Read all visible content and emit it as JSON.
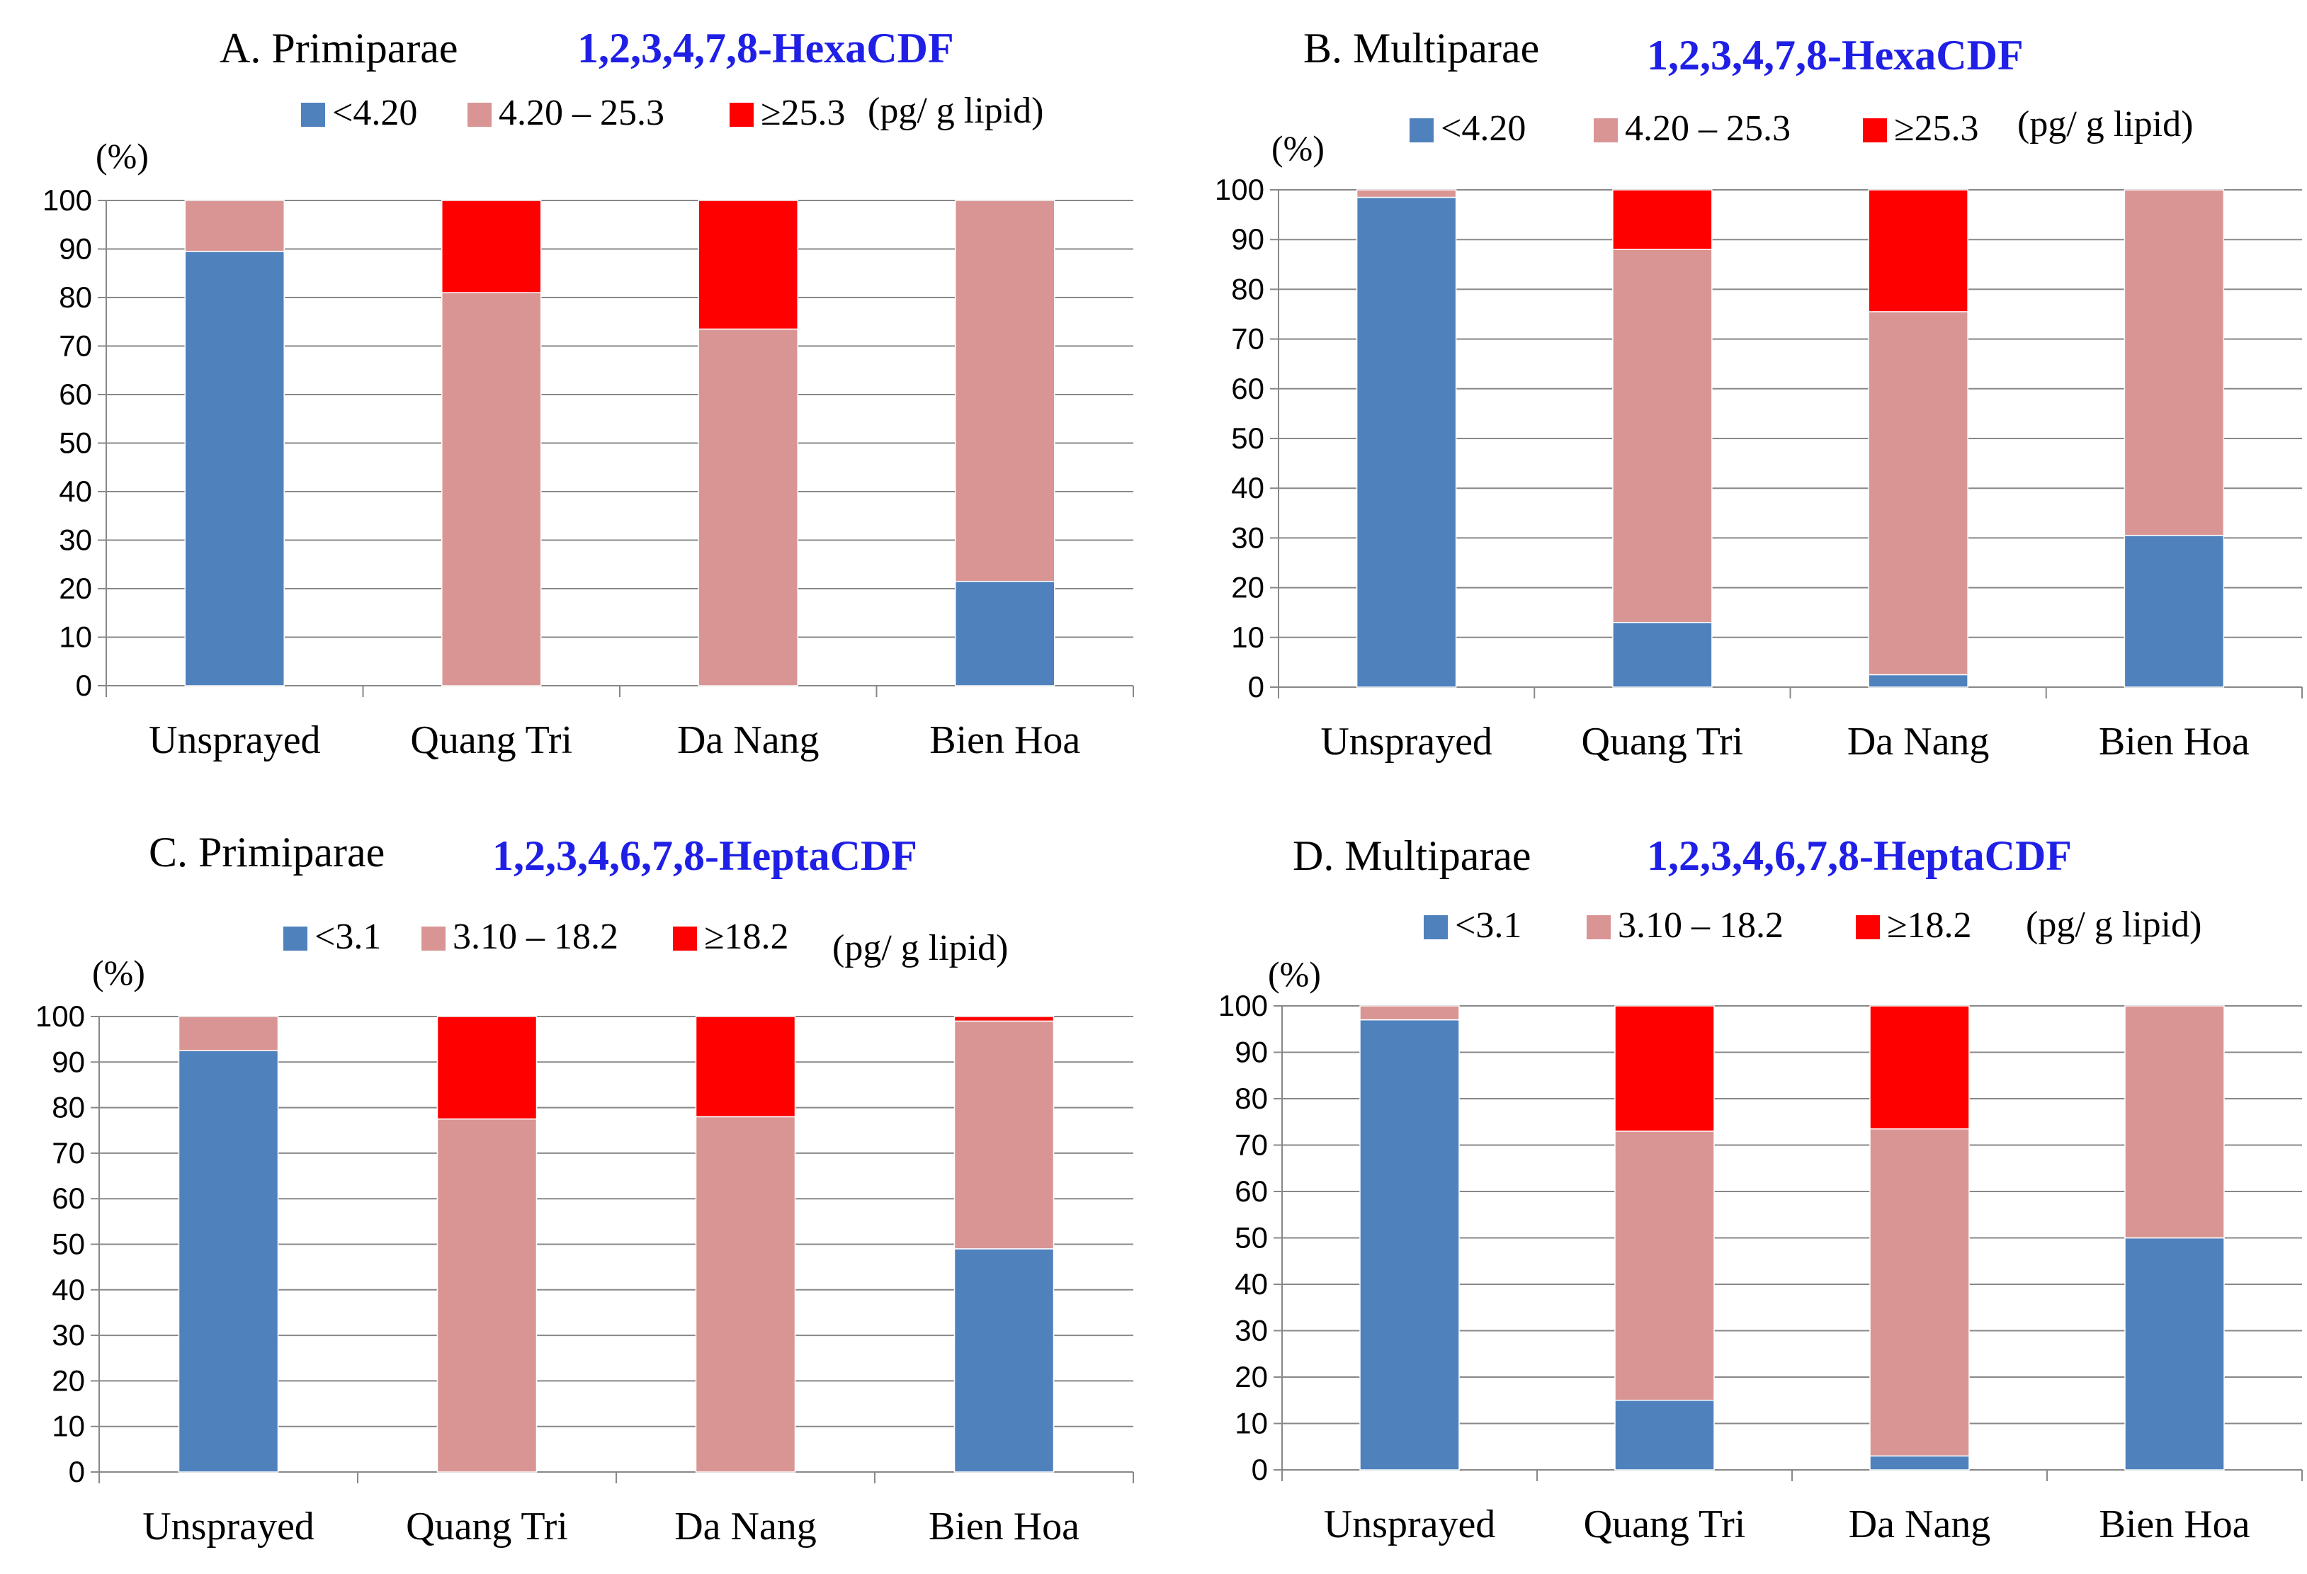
{
  "chart_data": [
    {
      "type": "bar",
      "stacked": true,
      "title": "A. Primiparae",
      "compound": "1,2,3,4,7,8-HexaCDF",
      "ylabel": "(%)",
      "unit": "(pg/ g lipid)",
      "ylim": [
        0,
        100
      ],
      "yticks": [
        "0",
        "10",
        "20",
        "30",
        "40",
        "50",
        "60",
        "70",
        "80",
        "90",
        "100"
      ],
      "categories": [
        "Unsprayed",
        "Quang Tri",
        "Da Nang",
        "Bien Hoa"
      ],
      "series": [
        {
          "name": "<4.20",
          "color": "#4f81bd",
          "values": [
            89.5,
            0,
            0,
            21.5
          ]
        },
        {
          "name": "4.20 – 25.3",
          "color": "#d99594",
          "values": [
            10.5,
            81,
            73.5,
            78.5
          ]
        },
        {
          "name": "≥25.3",
          "color": "#ff0000",
          "values": [
            0,
            19,
            26.5,
            0
          ]
        }
      ]
    },
    {
      "type": "bar",
      "stacked": true,
      "title": "B. Multiparae",
      "compound": "1,2,3,4,7,8-HexaCDF",
      "ylabel": "(%)",
      "unit": "(pg/ g lipid)",
      "ylim": [
        0,
        100
      ],
      "yticks": [
        "0",
        "10",
        "20",
        "30",
        "40",
        "50",
        "60",
        "70",
        "80",
        "90",
        "100"
      ],
      "categories": [
        "Unsprayed",
        "Quang Tri",
        "Da Nang",
        "Bien Hoa"
      ],
      "series": [
        {
          "name": "<4.20",
          "color": "#4f81bd",
          "values": [
            98.5,
            13,
            2.5,
            30.5
          ]
        },
        {
          "name": "4.20 – 25.3",
          "color": "#d99594",
          "values": [
            1.5,
            75,
            73,
            69.5
          ]
        },
        {
          "name": "≥25.3",
          "color": "#ff0000",
          "values": [
            0,
            12,
            24.5,
            0
          ]
        }
      ]
    },
    {
      "type": "bar",
      "stacked": true,
      "title": "C. Primiparae",
      "compound": "1,2,3,4,6,7,8-HeptaCDF",
      "ylabel": "(%)",
      "unit": "(pg/ g lipid)",
      "ylim": [
        0,
        100
      ],
      "yticks": [
        "0",
        "10",
        "20",
        "30",
        "40",
        "50",
        "60",
        "70",
        "80",
        "90",
        "100"
      ],
      "categories": [
        "Unsprayed",
        "Quang Tri",
        "Da Nang",
        "Bien Hoa"
      ],
      "series": [
        {
          "name": "<3.1",
          "color": "#4f81bd",
          "values": [
            92.5,
            0,
            0,
            49
          ]
        },
        {
          "name": "3.10 – 18.2",
          "color": "#d99594",
          "values": [
            7.5,
            77.5,
            78,
            50
          ]
        },
        {
          "name": "≥18.2",
          "color": "#ff0000",
          "values": [
            0,
            22.5,
            22,
            1
          ]
        }
      ]
    },
    {
      "type": "bar",
      "stacked": true,
      "title": "D. Multiparae",
      "compound": "1,2,3,4,6,7,8-HeptaCDF",
      "ylabel": "(%)",
      "unit": "(pg/ g lipid)",
      "ylim": [
        0,
        100
      ],
      "yticks": [
        "0",
        "10",
        "20",
        "30",
        "40",
        "50",
        "60",
        "70",
        "80",
        "90",
        "100"
      ],
      "categories": [
        "Unsprayed",
        "Quang Tri",
        "Da Nang",
        "Bien Hoa"
      ],
      "series": [
        {
          "name": "<3.1",
          "color": "#4f81bd",
          "values": [
            97,
            15,
            3,
            50
          ]
        },
        {
          "name": "3.10 – 18.2",
          "color": "#d99594",
          "values": [
            3,
            58,
            70.5,
            50
          ]
        },
        {
          "name": "≥18.2",
          "color": "#ff0000",
          "values": [
            0,
            27,
            26.5,
            0
          ]
        }
      ]
    }
  ]
}
